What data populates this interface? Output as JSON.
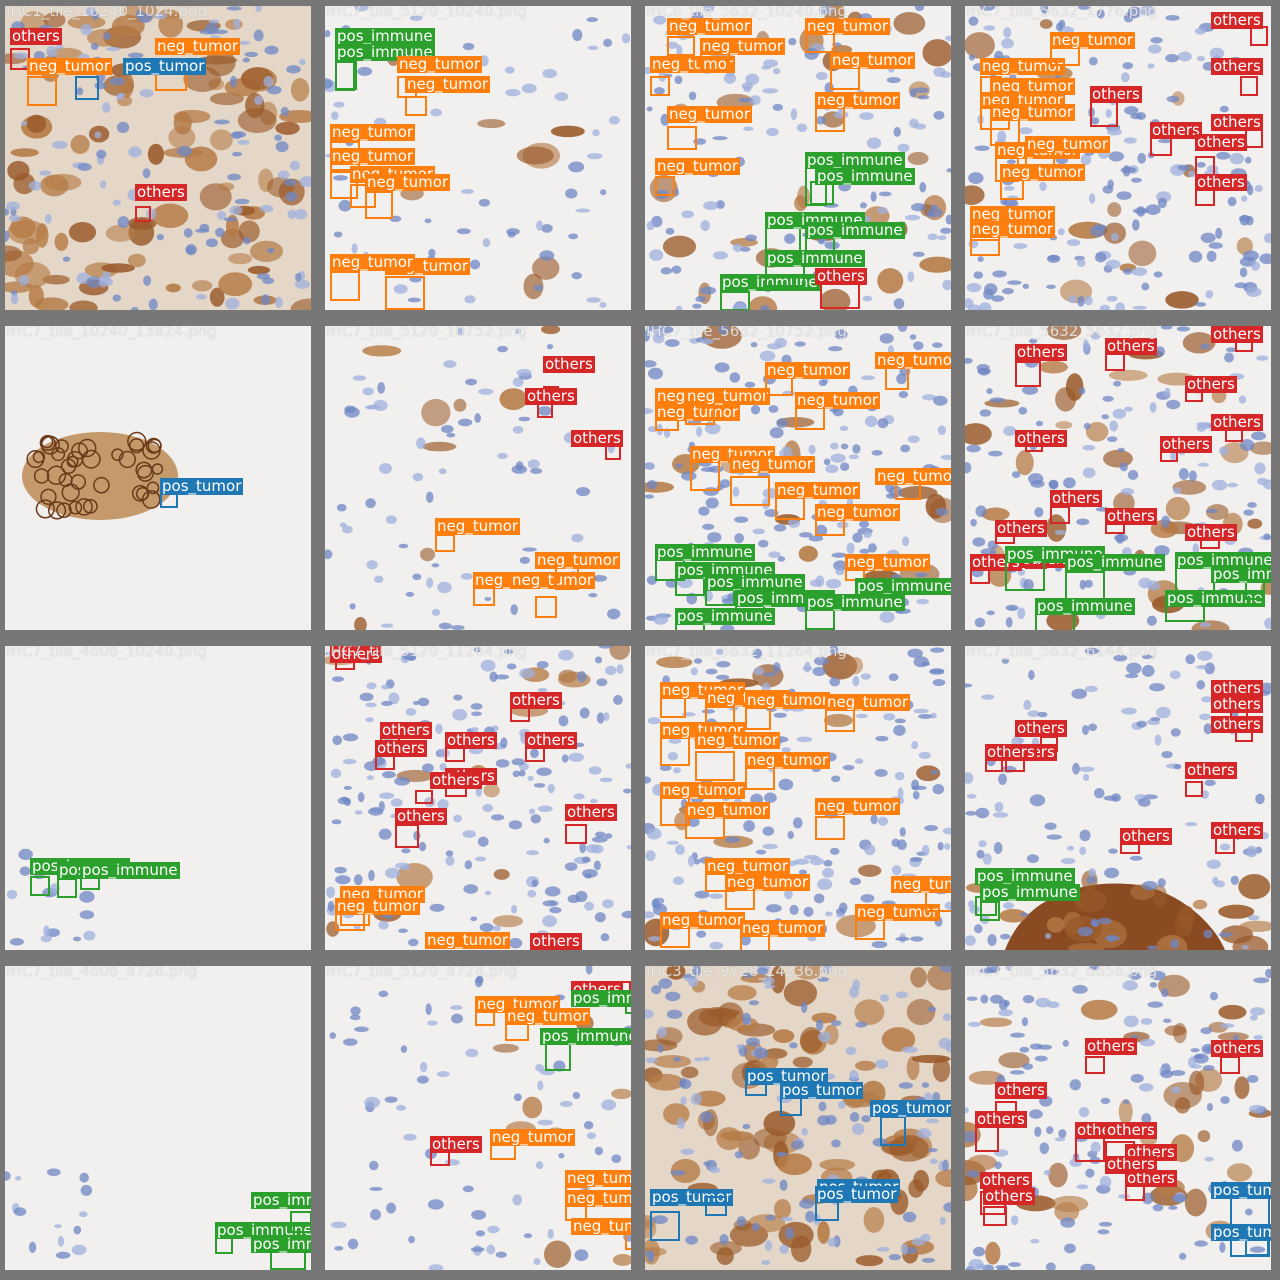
{
  "colors": {
    "others": "#d62728",
    "neg_tumor": "#ff7f0e",
    "pos_tumor": "#1f77b4",
    "pos_immune": "#2ca02c",
    "border": "#777777",
    "background": "#f1f0ee"
  },
  "tiles": [
    {
      "title": "IHC1_tile_10240_1024.png",
      "tissue": "dense-brown",
      "detections": [
        {
          "label": "others"
        },
        {
          "label": "neg_tumor"
        },
        {
          "label": "neg_tumor"
        },
        {
          "label": "pos_tumor"
        },
        {
          "label": "others"
        }
      ]
    },
    {
      "title": "IHC7_tile_5120_10240.png",
      "tissue": "sparse-blue",
      "detections": [
        {
          "label": "pos_immune"
        },
        {
          "label": "pos_immune"
        },
        {
          "label": "neg_tumor"
        },
        {
          "label": "neg_tumor"
        },
        {
          "label": "neg_tumor"
        },
        {
          "label": "neg_tumor"
        },
        {
          "label": "neg_tumor"
        },
        {
          "label": "neg_tumor"
        },
        {
          "label": "neg_tumor"
        },
        {
          "label": "neg_tumor"
        }
      ]
    },
    {
      "title": "IHC6_tile_5632_10240.png",
      "tissue": "mixed",
      "detections": [
        {
          "label": "neg_tumor"
        },
        {
          "label": "neg_tumor"
        },
        {
          "label": "neg_tumor"
        },
        {
          "label": "neg_tumor"
        },
        {
          "label": "neg_tumor"
        },
        {
          "label": "neg_tumor"
        },
        {
          "label": "neg_tumor"
        },
        {
          "label": "neg_tumor"
        },
        {
          "label": "pos_immune"
        },
        {
          "label": "pos_immune"
        },
        {
          "label": "pos_immune"
        },
        {
          "label": "pos_immune"
        },
        {
          "label": "pos_immune"
        },
        {
          "label": "pos_immune"
        },
        {
          "label": "others"
        }
      ]
    },
    {
      "title": "IHC7_tile_5632_1776.png",
      "tissue": "dense-blue",
      "detections": [
        {
          "label": "neg_tumor"
        },
        {
          "label": "neg_tumor"
        },
        {
          "label": "neg_tumor"
        },
        {
          "label": "neg_tumor"
        },
        {
          "label": "neg_tumor"
        },
        {
          "label": "neg_tumor"
        },
        {
          "label": "neg_tumor"
        },
        {
          "label": "neg_tumor"
        },
        {
          "label": "neg_tumor"
        },
        {
          "label": "neg_tumor"
        },
        {
          "label": "others"
        },
        {
          "label": "others"
        },
        {
          "label": "others"
        },
        {
          "label": "others"
        },
        {
          "label": "others"
        },
        {
          "label": "others"
        },
        {
          "label": "others"
        }
      ]
    },
    {
      "title": "IHC7_tile_10240_13824.png",
      "tissue": "blank-blob",
      "detections": [
        {
          "label": "pos_tumor"
        }
      ]
    },
    {
      "title": "IHC7_tile_5120_10752.png",
      "tissue": "sparse-blue",
      "detections": [
        {
          "label": "others"
        },
        {
          "label": "others"
        },
        {
          "label": "others"
        },
        {
          "label": "neg_tumor"
        },
        {
          "label": "neg_tumor"
        },
        {
          "label": "neg_tumor"
        },
        {
          "label": "neg_tumor"
        }
      ]
    },
    {
      "title": "IHC7_tile_5632_10752.png",
      "tissue": "dense-blue",
      "detections": [
        {
          "label": "neg_tumor"
        },
        {
          "label": "neg_tumor"
        },
        {
          "label": "neg_tumor"
        },
        {
          "label": "neg_tumor"
        },
        {
          "label": "neg_tumor"
        },
        {
          "label": "neg_tumor"
        },
        {
          "label": "neg_tumor"
        },
        {
          "label": "neg_tumor"
        },
        {
          "label": "neg_tumor"
        },
        {
          "label": "neg_tumor"
        },
        {
          "label": "neg_tumor"
        },
        {
          "label": "neg_tumor"
        },
        {
          "label": "pos_immune"
        },
        {
          "label": "pos_immune"
        },
        {
          "label": "pos_immune"
        },
        {
          "label": "pos_immune"
        },
        {
          "label": "pos_immune"
        },
        {
          "label": "pos_immune"
        },
        {
          "label": "pos_immune"
        }
      ]
    },
    {
      "title": "IHC7_tile_5632_5632.png",
      "tissue": "mixed",
      "detections": [
        {
          "label": "others"
        },
        {
          "label": "others"
        },
        {
          "label": "others"
        },
        {
          "label": "others"
        },
        {
          "label": "others"
        },
        {
          "label": "others"
        },
        {
          "label": "others"
        },
        {
          "label": "others"
        },
        {
          "label": "others"
        },
        {
          "label": "others"
        },
        {
          "label": "others"
        },
        {
          "label": "others"
        },
        {
          "label": "others"
        },
        {
          "label": "pos_immune"
        },
        {
          "label": "pos_immune"
        },
        {
          "label": "pos_immune"
        },
        {
          "label": "pos_immune"
        },
        {
          "label": "pos_immune"
        },
        {
          "label": "pos_immune"
        }
      ]
    },
    {
      "title": "IHC7_tile_4608_10240.png",
      "tissue": "blank-corner",
      "detections": [
        {
          "label": "pos_immune"
        },
        {
          "label": "pos_immune"
        },
        {
          "label": "pos_immune"
        }
      ]
    },
    {
      "title": "IHC7_tile_5120_11264.png",
      "tissue": "dense-blue",
      "detections": [
        {
          "label": "others"
        },
        {
          "label": "others"
        },
        {
          "label": "others"
        },
        {
          "label": "others"
        },
        {
          "label": "others"
        },
        {
          "label": "others"
        },
        {
          "label": "others"
        },
        {
          "label": "others"
        },
        {
          "label": "others"
        },
        {
          "label": "others"
        },
        {
          "label": "neg_tumor"
        },
        {
          "label": "neg_tumor"
        },
        {
          "label": "neg_tumor"
        },
        {
          "label": "others"
        }
      ]
    },
    {
      "title": "IHC7_tile_5632_11264.png",
      "tissue": "dense-blue",
      "detections": [
        {
          "label": "neg_tumor"
        },
        {
          "label": "neg_tumor"
        },
        {
          "label": "neg_tumor"
        },
        {
          "label": "neg_tumor"
        },
        {
          "label": "neg_tumor"
        },
        {
          "label": "neg_tumor"
        },
        {
          "label": "neg_tumor"
        },
        {
          "label": "neg_tumor"
        },
        {
          "label": "neg_tumor"
        },
        {
          "label": "neg_tumor"
        },
        {
          "label": "neg_tumor"
        },
        {
          "label": "neg_tumor"
        },
        {
          "label": "neg_tumor"
        },
        {
          "label": "neg_tumor"
        },
        {
          "label": "neg_tumor"
        },
        {
          "label": "neg_tumor"
        }
      ]
    },
    {
      "title": "IHC7_tile_5632_6144.png",
      "tissue": "mixed-brown-bottom",
      "detections": [
        {
          "label": "others"
        },
        {
          "label": "others"
        },
        {
          "label": "others"
        },
        {
          "label": "others"
        },
        {
          "label": "others"
        },
        {
          "label": "others"
        },
        {
          "label": "others"
        },
        {
          "label": "others"
        },
        {
          "label": "others"
        },
        {
          "label": "pos_immune"
        },
        {
          "label": "pos_immune"
        }
      ]
    },
    {
      "title": "IHC7_tile_4608_9728.png",
      "tissue": "blank-corner",
      "detections": [
        {
          "label": "pos_immune"
        },
        {
          "label": "pos_immune"
        },
        {
          "label": "pos_immune"
        }
      ]
    },
    {
      "title": "IHC7_tile_5120_9728.png",
      "tissue": "sparse-blue",
      "detections": [
        {
          "label": "neg_tumor"
        },
        {
          "label": "neg_tumor"
        },
        {
          "label": "pos_immune"
        },
        {
          "label": "others"
        },
        {
          "label": "neg_tumor"
        },
        {
          "label": "neg_tumor"
        },
        {
          "label": "neg_tumor"
        },
        {
          "label": "neg_tumor"
        },
        {
          "label": "others"
        },
        {
          "label": "pos_immune"
        }
      ]
    },
    {
      "title": "IHC3_tile_9728_14336.png",
      "tissue": "dense-brown",
      "detections": [
        {
          "label": "pos_tumor"
        },
        {
          "label": "pos_tumor"
        },
        {
          "label": "pos_tumor"
        },
        {
          "label": "pos_tumor"
        },
        {
          "label": "pos_tumor"
        },
        {
          "label": "pos_tumor"
        }
      ]
    },
    {
      "title": "IHC7_tile_5632_6656.png",
      "tissue": "mixed",
      "detections": [
        {
          "label": "others"
        },
        {
          "label": "others"
        },
        {
          "label": "others"
        },
        {
          "label": "others"
        },
        {
          "label": "others"
        },
        {
          "label": "others"
        },
        {
          "label": "others"
        },
        {
          "label": "others"
        },
        {
          "label": "others"
        },
        {
          "label": "others"
        },
        {
          "label": "others"
        },
        {
          "label": "pos_tumor"
        },
        {
          "label": "pos_tumor"
        }
      ]
    }
  ]
}
